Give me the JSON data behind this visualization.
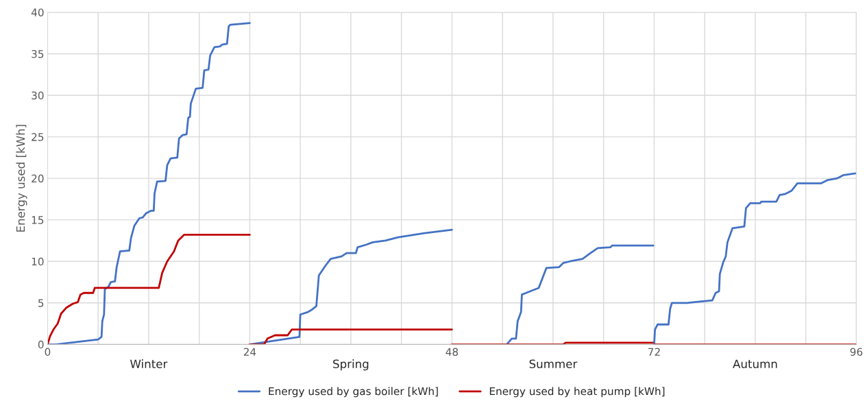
{
  "chart_data": {
    "type": "line",
    "ylabel": "Energy used [kWh]",
    "xlim": [
      0,
      96
    ],
    "ylim": [
      0,
      40
    ],
    "xticks": [
      0,
      {
        "value": 6,
        "label": null
      },
      {
        "value": 12,
        "label": null
      },
      {
        "value": 18,
        "label": null
      },
      24,
      {
        "value": 30,
        "label": null
      },
      {
        "value": 36,
        "label": null
      },
      {
        "value": 42,
        "label": null
      },
      48,
      {
        "value": 54,
        "label": null
      },
      {
        "value": 60,
        "label": null
      },
      {
        "value": 66,
        "label": null
      },
      72,
      {
        "value": 78,
        "label": null
      },
      {
        "value": 84,
        "label": null
      },
      {
        "value": 90,
        "label": null
      },
      96
    ],
    "yticks": [
      0,
      5,
      10,
      15,
      20,
      25,
      30,
      35,
      40
    ],
    "grid": true,
    "legend": "bottom",
    "marker": "none",
    "line_style": "solid",
    "annotations": [
      "Winter",
      "Spring",
      "Summer",
      "Autumn"
    ],
    "series": [
      {
        "name": "Energy used by gas boiler [kWh]",
        "color": "#4472c4",
        "x": [
          0,
          1,
          6,
          6.4,
          6.5,
          6.7,
          6.8,
          7.2,
          7.5,
          8.0,
          8.2,
          8.6,
          9.7,
          9.9,
          10.3,
          10.9,
          11.3,
          11.7,
          12.3,
          12.6,
          12.7,
          13.0,
          14.0,
          14.2,
          14.6,
          15.4,
          15.6,
          16.0,
          16.5,
          16.7,
          16.9,
          17.0,
          17.6,
          18.4,
          18.6,
          19.1,
          19.3,
          19.8,
          20.5,
          20.7,
          21.3,
          21.5,
          21.7,
          24
        ],
        "values": [
          0,
          0,
          0.6,
          0.9,
          2.8,
          3.6,
          6.7,
          6.9,
          7.5,
          7.6,
          9.3,
          11.2,
          11.3,
          12.8,
          14.3,
          15.2,
          15.3,
          15.8,
          16.1,
          16.1,
          18.2,
          19.6,
          19.7,
          21.6,
          22.4,
          22.5,
          24.8,
          25.2,
          25.3,
          27.3,
          27.4,
          29.0,
          30.8,
          30.9,
          33.0,
          33.1,
          34.8,
          35.8,
          35.9,
          36.1,
          36.2,
          38.3,
          38.5,
          38.7
        ]
      },
      {
        "name": "Energy used by heat pump [kWh]",
        "color": "#c00000",
        "x": [
          0,
          0.3,
          0.7,
          1.2,
          1.6,
          2.2,
          3.0,
          3.6,
          3.9,
          4.3,
          5.4,
          5.6,
          13.2,
          13.6,
          14.2,
          15.0,
          15.5,
          16.2,
          24
        ],
        "values": [
          0,
          1.0,
          1.8,
          2.5,
          3.7,
          4.4,
          4.9,
          5.1,
          6.0,
          6.2,
          6.2,
          6.8,
          6.8,
          8.6,
          10.0,
          11.2,
          12.5,
          13.2,
          13.2
        ]
      },
      {
        "color": "#4472c4",
        "x": [
          24,
          29.9,
          30.0,
          30.9,
          31.4,
          31.9,
          32.2,
          32.6,
          33.0,
          33.6,
          34.9,
          35.5,
          36.6,
          36.8,
          37.8,
          38.6,
          40.1,
          41.6,
          44.7,
          48
        ],
        "values": [
          0,
          0.9,
          3.6,
          3.9,
          4.2,
          4.6,
          8.3,
          8.9,
          9.5,
          10.3,
          10.6,
          11.0,
          11.0,
          11.7,
          12.0,
          12.3,
          12.5,
          12.9,
          13.4,
          13.8
        ]
      },
      {
        "color": "#c00000",
        "x": [
          24,
          25.7,
          26.1,
          27.0,
          28.5,
          29.0,
          48
        ],
        "values": [
          0,
          0,
          0.7,
          1.1,
          1.1,
          1.8,
          1.8
        ]
      },
      {
        "color": "#4472c4",
        "x": [
          48,
          54.5,
          55.1,
          55.6,
          55.8,
          56.2,
          56.3,
          57.3,
          58.3,
          59.2,
          60.7,
          61.2,
          62.0,
          63.5,
          64.3,
          65.3,
          66.8,
          67.0,
          71.9
        ],
        "values": [
          0,
          0,
          0.7,
          0.7,
          2.8,
          3.9,
          6.0,
          6.4,
          6.8,
          9.2,
          9.3,
          9.8,
          10.0,
          10.3,
          10.9,
          11.6,
          11.7,
          11.9,
          11.9
        ]
      },
      {
        "color": "#c00000",
        "x": [
          48,
          61.2,
          61.5,
          72
        ],
        "values": [
          0,
          0,
          0.2,
          0.2
        ]
      },
      {
        "color": "#4472c4",
        "x": [
          72,
          72.1,
          72.4,
          73.7,
          73.9,
          74.1,
          75.9,
          78.9,
          79.3,
          79.7,
          79.8,
          80.2,
          80.5,
          80.7,
          81.3,
          82.7,
          82.9,
          83.4,
          84.6,
          84.7,
          86.5,
          86.9,
          87.5,
          88.3,
          89.0,
          91.8,
          92.6,
          93.7,
          94.5,
          95.9
        ],
        "values": [
          0,
          1.8,
          2.4,
          2.4,
          4.3,
          5.0,
          5.0,
          5.3,
          6.2,
          6.4,
          8.5,
          9.9,
          10.6,
          12.3,
          14.0,
          14.2,
          16.4,
          17.0,
          17.0,
          17.2,
          17.2,
          18.0,
          18.1,
          18.5,
          19.4,
          19.4,
          19.8,
          20.0,
          20.4,
          20.6
        ]
      },
      {
        "color": "#c00000",
        "x": [
          72,
          96
        ],
        "values": [
          0,
          0
        ]
      }
    ]
  }
}
